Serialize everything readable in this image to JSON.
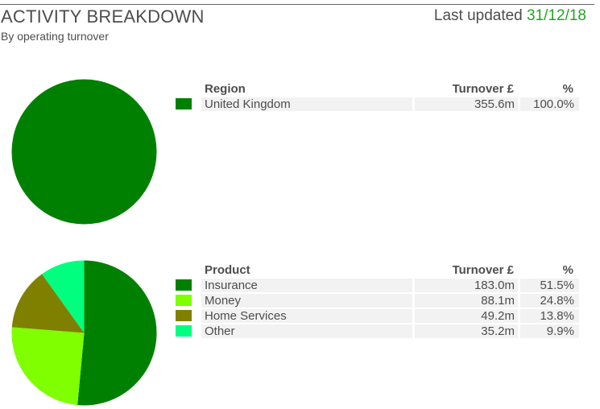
{
  "header": {
    "title": "ACTIVITY BREAKDOWN",
    "subtitle": "By operating turnover",
    "updated_label": "Last updated",
    "updated_date": "31/12/18"
  },
  "region_table": {
    "headers": {
      "name": "Region",
      "turnover": "Turnover £",
      "pct": "%"
    },
    "rows": [
      {
        "name": "United Kingdom",
        "turnover": "355.6m",
        "pct": "100.0%",
        "color": "#008000"
      }
    ]
  },
  "product_table": {
    "headers": {
      "name": "Product",
      "turnover": "Turnover £",
      "pct": "%"
    },
    "rows": [
      {
        "name": "Insurance",
        "turnover": "183.0m",
        "pct": "51.5%",
        "color": "#008000"
      },
      {
        "name": "Money",
        "turnover": "88.1m",
        "pct": "24.8%",
        "color": "#7fff00"
      },
      {
        "name": "Home Services",
        "turnover": "49.2m",
        "pct": "13.8%",
        "color": "#808000"
      },
      {
        "name": "Other",
        "turnover": "35.2m",
        "pct": "9.9%",
        "color": "#00ff7f"
      }
    ]
  },
  "chart_data": [
    {
      "type": "pie",
      "categories": [
        "United Kingdom"
      ],
      "values": [
        355.6
      ],
      "colors": [
        "#008000"
      ]
    },
    {
      "type": "pie",
      "categories": [
        "Insurance",
        "Money",
        "Home Services",
        "Other"
      ],
      "values": [
        183.0,
        88.1,
        49.2,
        35.2
      ],
      "colors": [
        "#008000",
        "#7fff00",
        "#808000",
        "#00ff7f"
      ]
    }
  ]
}
